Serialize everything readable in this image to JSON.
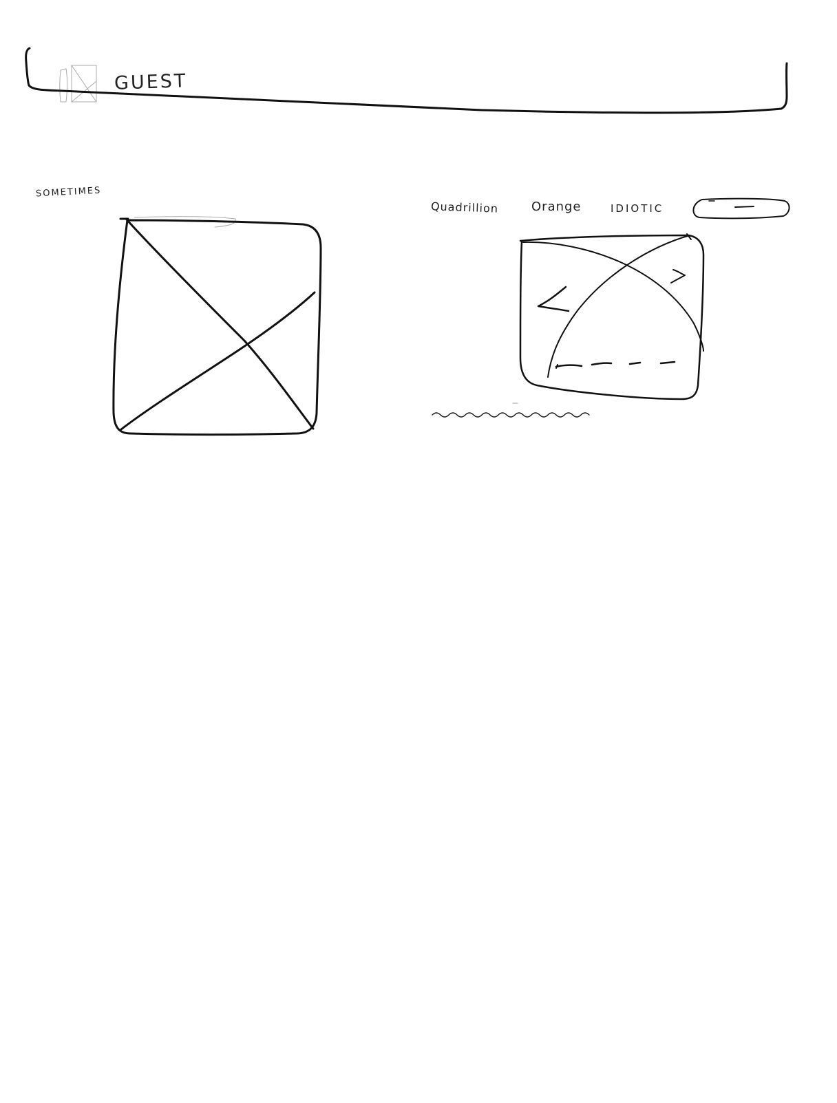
{
  "header": {
    "title": "GUEST",
    "logo_icon": "image-placeholder-icon"
  },
  "left_section": {
    "heading": "SOMETIMES",
    "image_icon": "image-placeholder-icon"
  },
  "right_section": {
    "nav_links": [
      "Quadrillion",
      "Orange",
      "IDIOTIC"
    ],
    "search_icon": "pill-button",
    "carousel": {
      "prev_icon": "chevron-left-icon",
      "next_icon": "chevron-right-icon",
      "pager_icon": "dashed-pager-indicator"
    },
    "caption_icon": "wavy-text-placeholder"
  }
}
